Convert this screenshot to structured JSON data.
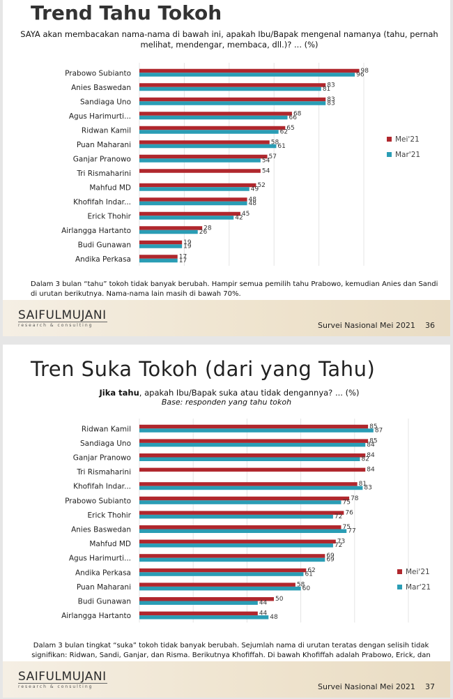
{
  "chart_data": [
    {
      "type": "bar",
      "title": "Trend Tahu Tokoh",
      "question": "SAYA akan membacakan nama-nama di bawah ini, apakah Ibu/Bapak mengenal namanya (tahu, pernah melihat, mendengar, membaca, dll.)? ... (%)",
      "categories": [
        "Prabowo Subianto",
        "Anies Baswedan",
        "Sandiaga Uno",
        "Agus Harimurti...",
        "Ridwan Kamil",
        "Puan Maharani",
        "Ganjar Pranowo",
        "Tri Rismaharini",
        "Mahfud MD",
        "Khofifah Indar...",
        "Erick Thohir",
        "Airlangga Hartanto",
        "Budi Gunawan",
        "Andika Perkasa"
      ],
      "series": [
        {
          "name": "Mei'21",
          "color": "#b0272d",
          "values": [
            98,
            83,
            83,
            68,
            65,
            58,
            57,
            54,
            52,
            48,
            45,
            28,
            19,
            17
          ]
        },
        {
          "name": "Mar'21",
          "color": "#2a9db5",
          "values": [
            96,
            81,
            83,
            66,
            62,
            61,
            54,
            null,
            49,
            48,
            42,
            26,
            19,
            17
          ]
        }
      ],
      "xlim": [
        0,
        100
      ],
      "legend": "right",
      "grid": true,
      "summary": "Dalam 3 bulan “tahu” tokoh tidak banyak berubah. Hampir semua pemilih tahu Prabowo, kemudian Anies dan Sandi di urutan berikutnya. Nama-nama lain masih di bawah 70%."
    },
    {
      "type": "bar",
      "title": "Tren Suka Tokoh (dari yang Tahu)",
      "question_bold": "Jika tahu",
      "question": ", apakah Ibu/Bapak suka atau tidak dengannya? ... (%)",
      "base": "Base: responden yang tahu tokoh",
      "categories": [
        "Ridwan Kamil",
        "Sandiaga Uno",
        "Ganjar Pranowo",
        "Tri Rismaharini",
        "Khofifah Indar...",
        "Prabowo Subianto",
        "Erick Thohir",
        "Anies Baswedan",
        "Mahfud MD",
        "Agus Harimurti...",
        "Andika Perkasa",
        "Puan Maharani",
        "Budi Gunawan",
        "Airlangga Hartanto"
      ],
      "series": [
        {
          "name": "Mei'21",
          "color": "#b0272d",
          "values": [
            85,
            85,
            84,
            84,
            81,
            78,
            76,
            75,
            73,
            69,
            62,
            58,
            50,
            44
          ]
        },
        {
          "name": "Mar'21",
          "color": "#2a9db5",
          "values": [
            87,
            84,
            82,
            null,
            83,
            75,
            72,
            77,
            72,
            69,
            61,
            60,
            44,
            48
          ]
        }
      ],
      "xlim": [
        0,
        100
      ],
      "legend": "right",
      "grid": true,
      "summary": "Dalam 3 bulan tingkat “suka” tokoh tidak banyak berubah. Sejumlah nama di urutan teratas dengan selisih tidak signifikan: Ridwan, Sandi, Ganjar, dan Risma. Berikutnya Khofiffah. Di bawah Khofiffah adalah Prabowo, Erick, dan Anies"
    }
  ],
  "footer": {
    "logo": "SAIFULMUJANI",
    "logo_sub": "research & consulting",
    "survey": "Survei Nasional Mei 2021",
    "page1": "36",
    "page2": "37"
  }
}
